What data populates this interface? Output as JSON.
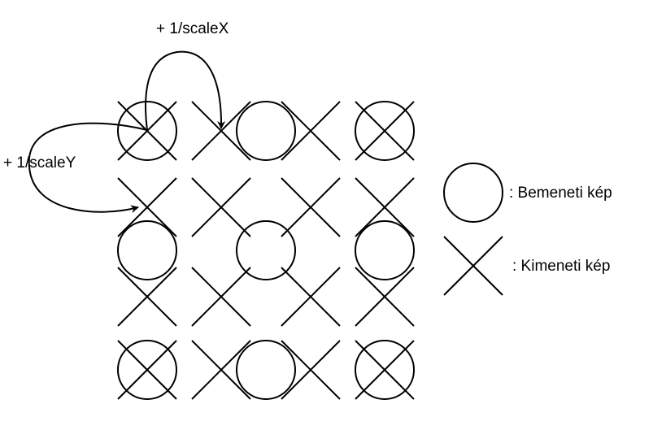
{
  "annotations": {
    "step_x": "+ 1/scaleX",
    "step_y": "+ 1/scaleY"
  },
  "legend": {
    "input_label": ": Bemeneti kép",
    "output_label": ": Kimeneti kép"
  },
  "colors": {
    "stroke": "#000000",
    "background": "#ffffff"
  }
}
